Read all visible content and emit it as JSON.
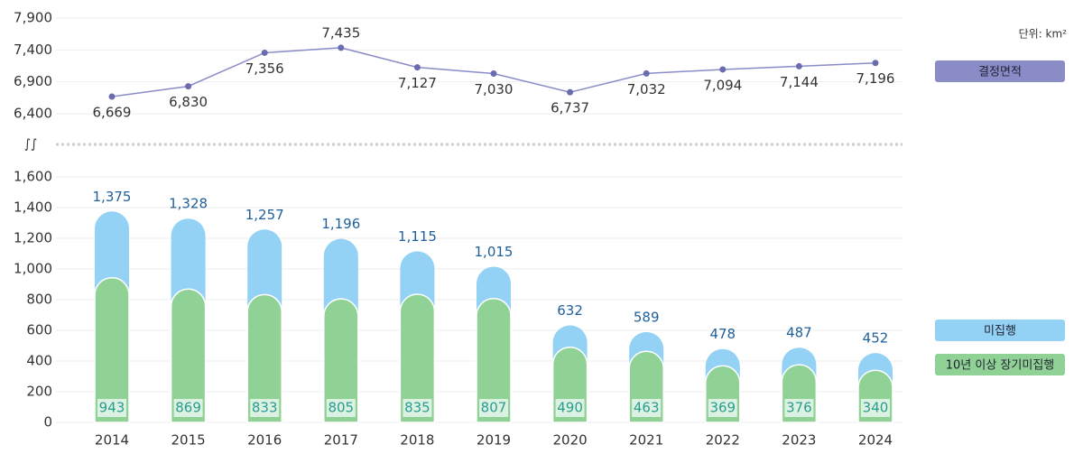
{
  "chart_data": {
    "type": "bar",
    "unit": "단위: km²",
    "categories": [
      "2014",
      "2015",
      "2016",
      "2017",
      "2018",
      "2019",
      "2020",
      "2021",
      "2022",
      "2023",
      "2024"
    ],
    "series": [
      {
        "name": "미집행",
        "color": "#93d2f5",
        "values": [
          1375,
          1328,
          1257,
          1196,
          1115,
          1015,
          632,
          589,
          478,
          487,
          452
        ],
        "value_labels": [
          "1,375",
          "1,328",
          "1,257",
          "1,196",
          "1,115",
          "1,015",
          "632",
          "589",
          "478",
          "487",
          "452"
        ]
      },
      {
        "name": "10년 이상 장기미집행",
        "color": "#90d195",
        "values": [
          943,
          869,
          833,
          805,
          835,
          807,
          490,
          463,
          369,
          376,
          340
        ]
      },
      {
        "name": "결정면적",
        "type": "line",
        "axis": "y2",
        "color": "#8a8cc8",
        "values": [
          6669,
          6830,
          7356,
          7435,
          7127,
          7030,
          6737,
          7032,
          7094,
          7144,
          7196
        ],
        "value_labels": [
          "6,669",
          "6,830",
          "7,356",
          "7,435",
          "7,127",
          "7,030",
          "6,737",
          "7,032",
          "7,094",
          "7,144",
          "7,196"
        ]
      }
    ],
    "ylim": [
      0,
      1600
    ],
    "yticks": [
      0,
      200,
      400,
      600,
      800,
      {
        "value": 1000,
        "label": "1,000"
      },
      {
        "value": 1200,
        "label": "1,200"
      },
      {
        "value": 1400,
        "label": "1,400"
      },
      {
        "value": 1600,
        "label": "1,600"
      }
    ],
    "y2lim": [
      6400,
      7900
    ],
    "y2ticks": [
      {
        "value": 6400,
        "label": "6,400"
      },
      {
        "value": 6900,
        "label": "6,900"
      },
      {
        "value": 7400,
        "label": "7,400"
      },
      {
        "value": 7900,
        "label": "7,900"
      }
    ],
    "grid": true
  }
}
